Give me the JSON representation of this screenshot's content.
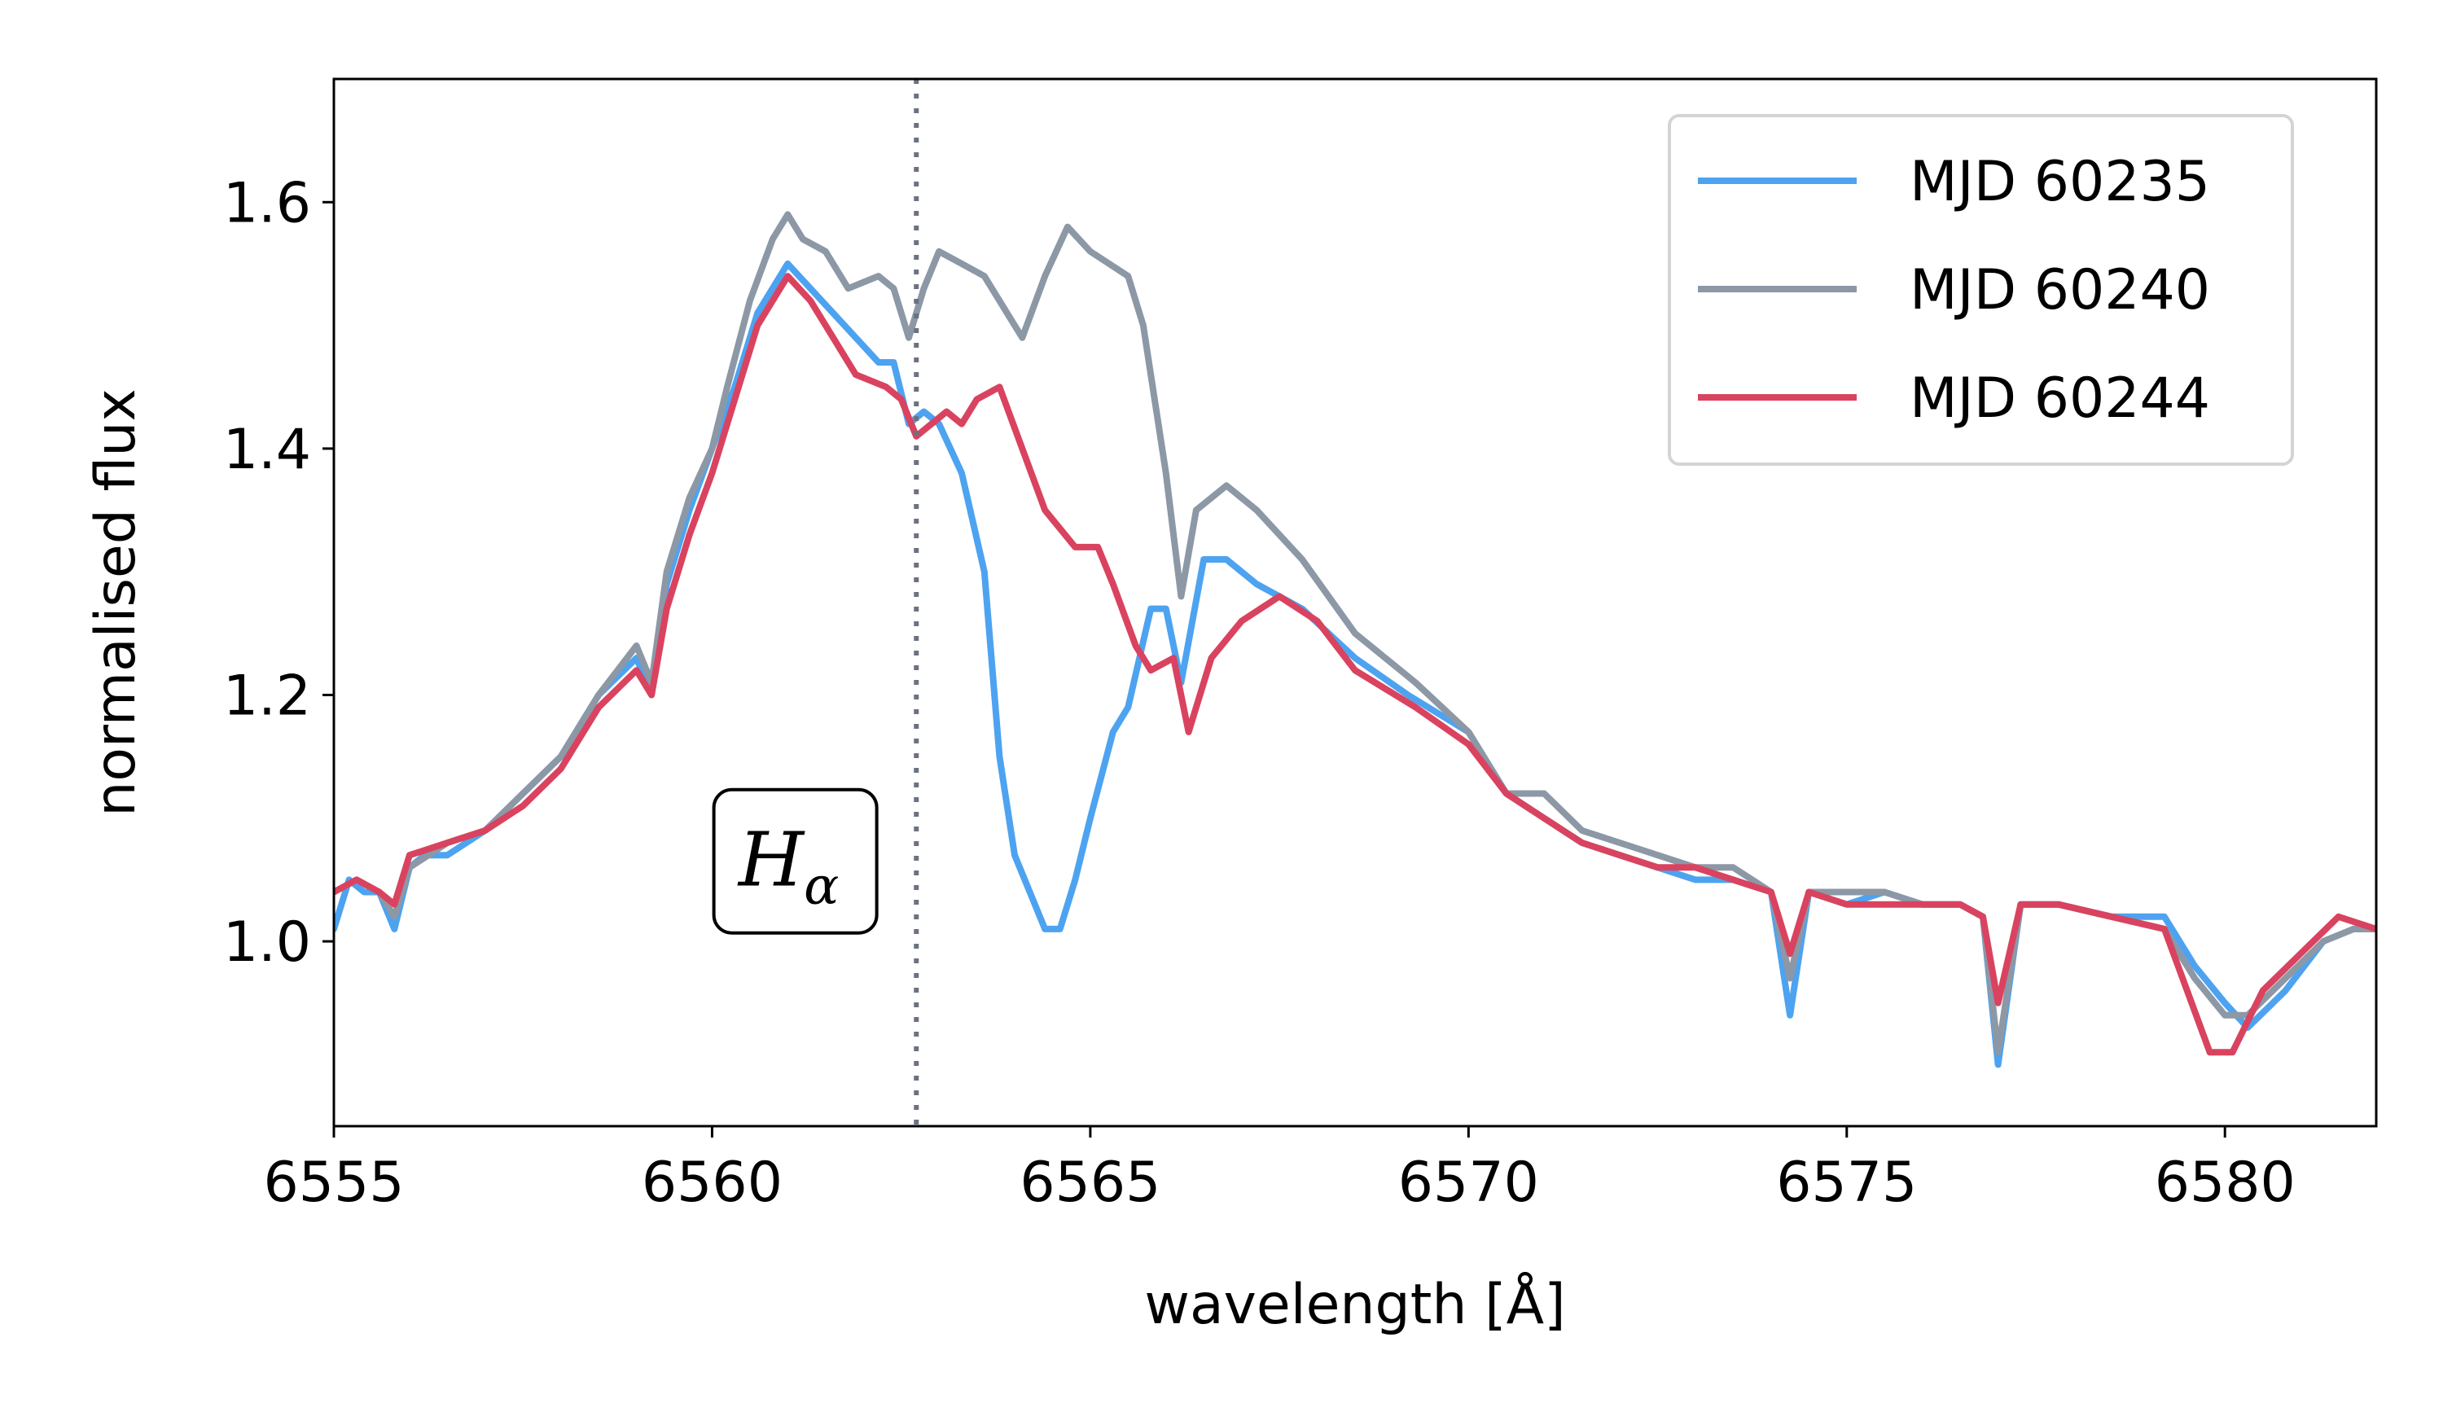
{
  "chart_data": {
    "type": "line",
    "xlabel": "wavelength [Å]",
    "ylabel": "normalised flux",
    "xlim": [
      6555,
      6582
    ],
    "ylim": [
      0.85,
      1.7
    ],
    "xticks": [
      6555,
      6560,
      6565,
      6570,
      6575,
      6580
    ],
    "xtick_labels": [
      "6555",
      "6560",
      "6565",
      "6570",
      "6575",
      "6580"
    ],
    "yticks": [
      1.0,
      1.2,
      1.4,
      1.6
    ],
    "ytick_labels": [
      "1.0",
      "1.2",
      "1.4",
      "1.6"
    ],
    "grid": false,
    "legend_position": "top-right",
    "reference_line": {
      "x": 6562.7,
      "style": "dotted",
      "color": "#6b7380"
    },
    "annotation": {
      "text": "H",
      "subscript": "α",
      "x": 6561.1,
      "y": 1.065
    },
    "series": [
      {
        "name": "MJD 60235",
        "color": "#4da3f0",
        "points": [
          [
            6555.0,
            1.01
          ],
          [
            6555.2,
            1.05
          ],
          [
            6555.4,
            1.04
          ],
          [
            6555.6,
            1.04
          ],
          [
            6555.8,
            1.01
          ],
          [
            6556.0,
            1.06
          ],
          [
            6556.2,
            1.07
          ],
          [
            6556.5,
            1.07
          ],
          [
            6557.0,
            1.09
          ],
          [
            6557.5,
            1.12
          ],
          [
            6558.0,
            1.15
          ],
          [
            6558.5,
            1.2
          ],
          [
            6559.0,
            1.23
          ],
          [
            6559.2,
            1.2
          ],
          [
            6559.4,
            1.29
          ],
          [
            6559.7,
            1.35
          ],
          [
            6560.0,
            1.4
          ],
          [
            6560.3,
            1.45
          ],
          [
            6560.6,
            1.51
          ],
          [
            6561.0,
            1.55
          ],
          [
            6561.3,
            1.53
          ],
          [
            6561.6,
            1.51
          ],
          [
            6561.9,
            1.49
          ],
          [
            6562.2,
            1.47
          ],
          [
            6562.4,
            1.47
          ],
          [
            6562.6,
            1.42
          ],
          [
            6562.8,
            1.43
          ],
          [
            6563.0,
            1.42
          ],
          [
            6563.3,
            1.38
          ],
          [
            6563.6,
            1.3
          ],
          [
            6563.8,
            1.15
          ],
          [
            6564.0,
            1.07
          ],
          [
            6564.2,
            1.04
          ],
          [
            6564.4,
            1.01
          ],
          [
            6564.6,
            1.01
          ],
          [
            6564.8,
            1.05
          ],
          [
            6565.0,
            1.1
          ],
          [
            6565.3,
            1.17
          ],
          [
            6565.5,
            1.19
          ],
          [
            6565.8,
            1.27
          ],
          [
            6566.0,
            1.27
          ],
          [
            6566.2,
            1.21
          ],
          [
            6566.5,
            1.31
          ],
          [
            6566.8,
            1.31
          ],
          [
            6567.2,
            1.29
          ],
          [
            6567.8,
            1.27
          ],
          [
            6568.5,
            1.23
          ],
          [
            6569.2,
            1.2
          ],
          [
            6570.0,
            1.17
          ],
          [
            6570.5,
            1.12
          ],
          [
            6571.0,
            1.1
          ],
          [
            6571.5,
            1.08
          ],
          [
            6572.0,
            1.07
          ],
          [
            6572.5,
            1.06
          ],
          [
            6573.0,
            1.05
          ],
          [
            6573.5,
            1.05
          ],
          [
            6574.0,
            1.04
          ],
          [
            6574.25,
            0.94
          ],
          [
            6574.5,
            1.04
          ],
          [
            6575.0,
            1.03
          ],
          [
            6575.5,
            1.04
          ],
          [
            6576.0,
            1.03
          ],
          [
            6576.5,
            1.03
          ],
          [
            6576.8,
            1.02
          ],
          [
            6577.0,
            0.9
          ],
          [
            6577.3,
            1.03
          ],
          [
            6577.8,
            1.03
          ],
          [
            6578.5,
            1.02
          ],
          [
            6579.2,
            1.02
          ],
          [
            6579.6,
            0.98
          ],
          [
            6580.0,
            0.95
          ],
          [
            6580.3,
            0.93
          ],
          [
            6580.8,
            0.96
          ],
          [
            6581.3,
            1.0
          ],
          [
            6581.7,
            1.01
          ],
          [
            6582.0,
            1.01
          ]
        ]
      },
      {
        "name": "MJD 60240",
        "color": "#8c98a6",
        "points": [
          [
            6555.0,
            1.04
          ],
          [
            6555.3,
            1.05
          ],
          [
            6555.6,
            1.04
          ],
          [
            6555.8,
            1.02
          ],
          [
            6556.0,
            1.06
          ],
          [
            6556.5,
            1.08
          ],
          [
            6557.0,
            1.09
          ],
          [
            6557.5,
            1.12
          ],
          [
            6558.0,
            1.15
          ],
          [
            6558.5,
            1.2
          ],
          [
            6559.0,
            1.24
          ],
          [
            6559.2,
            1.21
          ],
          [
            6559.4,
            1.3
          ],
          [
            6559.7,
            1.36
          ],
          [
            6560.0,
            1.4
          ],
          [
            6560.2,
            1.45
          ],
          [
            6560.5,
            1.52
          ],
          [
            6560.8,
            1.57
          ],
          [
            6561.0,
            1.59
          ],
          [
            6561.2,
            1.57
          ],
          [
            6561.5,
            1.56
          ],
          [
            6561.8,
            1.53
          ],
          [
            6562.2,
            1.54
          ],
          [
            6562.4,
            1.53
          ],
          [
            6562.6,
            1.49
          ],
          [
            6562.8,
            1.53
          ],
          [
            6563.0,
            1.56
          ],
          [
            6563.3,
            1.55
          ],
          [
            6563.6,
            1.54
          ],
          [
            6563.9,
            1.51
          ],
          [
            6564.1,
            1.49
          ],
          [
            6564.4,
            1.54
          ],
          [
            6564.7,
            1.58
          ],
          [
            6565.0,
            1.56
          ],
          [
            6565.5,
            1.54
          ],
          [
            6565.7,
            1.5
          ],
          [
            6566.0,
            1.38
          ],
          [
            6566.2,
            1.28
          ],
          [
            6566.4,
            1.35
          ],
          [
            6566.8,
            1.37
          ],
          [
            6567.2,
            1.35
          ],
          [
            6567.8,
            1.31
          ],
          [
            6568.5,
            1.25
          ],
          [
            6569.3,
            1.21
          ],
          [
            6570.0,
            1.17
          ],
          [
            6570.5,
            1.12
          ],
          [
            6571.0,
            1.12
          ],
          [
            6571.5,
            1.09
          ],
          [
            6572.0,
            1.08
          ],
          [
            6572.5,
            1.07
          ],
          [
            6573.0,
            1.06
          ],
          [
            6573.5,
            1.06
          ],
          [
            6574.0,
            1.04
          ],
          [
            6574.25,
            0.97
          ],
          [
            6574.5,
            1.04
          ],
          [
            6575.0,
            1.04
          ],
          [
            6575.5,
            1.04
          ],
          [
            6576.0,
            1.03
          ],
          [
            6576.5,
            1.03
          ],
          [
            6576.8,
            1.02
          ],
          [
            6577.0,
            0.91
          ],
          [
            6577.3,
            1.03
          ],
          [
            6577.8,
            1.03
          ],
          [
            6578.5,
            1.02
          ],
          [
            6579.2,
            1.01
          ],
          [
            6579.6,
            0.97
          ],
          [
            6580.0,
            0.94
          ],
          [
            6580.3,
            0.94
          ],
          [
            6580.8,
            0.97
          ],
          [
            6581.3,
            1.0
          ],
          [
            6581.7,
            1.01
          ],
          [
            6582.0,
            1.01
          ]
        ]
      },
      {
        "name": "MJD 60244",
        "color": "#d9435f",
        "points": [
          [
            6555.0,
            1.04
          ],
          [
            6555.3,
            1.05
          ],
          [
            6555.6,
            1.04
          ],
          [
            6555.8,
            1.03
          ],
          [
            6556.0,
            1.07
          ],
          [
            6556.5,
            1.08
          ],
          [
            6557.0,
            1.09
          ],
          [
            6557.5,
            1.11
          ],
          [
            6558.0,
            1.14
          ],
          [
            6558.5,
            1.19
          ],
          [
            6559.0,
            1.22
          ],
          [
            6559.2,
            1.2
          ],
          [
            6559.4,
            1.27
          ],
          [
            6559.7,
            1.33
          ],
          [
            6560.0,
            1.38
          ],
          [
            6560.3,
            1.44
          ],
          [
            6560.6,
            1.5
          ],
          [
            6561.0,
            1.54
          ],
          [
            6561.3,
            1.52
          ],
          [
            6561.6,
            1.49
          ],
          [
            6561.9,
            1.46
          ],
          [
            6562.3,
            1.45
          ],
          [
            6562.5,
            1.44
          ],
          [
            6562.7,
            1.41
          ],
          [
            6562.9,
            1.42
          ],
          [
            6563.1,
            1.43
          ],
          [
            6563.3,
            1.42
          ],
          [
            6563.5,
            1.44
          ],
          [
            6563.8,
            1.45
          ],
          [
            6564.1,
            1.4
          ],
          [
            6564.4,
            1.35
          ],
          [
            6564.8,
            1.32
          ],
          [
            6565.1,
            1.32
          ],
          [
            6565.3,
            1.29
          ],
          [
            6565.6,
            1.24
          ],
          [
            6565.8,
            1.22
          ],
          [
            6566.1,
            1.23
          ],
          [
            6566.3,
            1.17
          ],
          [
            6566.6,
            1.23
          ],
          [
            6567.0,
            1.26
          ],
          [
            6567.5,
            1.28
          ],
          [
            6568.0,
            1.26
          ],
          [
            6568.5,
            1.22
          ],
          [
            6569.3,
            1.19
          ],
          [
            6570.0,
            1.16
          ],
          [
            6570.5,
            1.12
          ],
          [
            6571.0,
            1.1
          ],
          [
            6571.5,
            1.08
          ],
          [
            6572.0,
            1.07
          ],
          [
            6572.5,
            1.06
          ],
          [
            6573.0,
            1.06
          ],
          [
            6573.5,
            1.05
          ],
          [
            6574.0,
            1.04
          ],
          [
            6574.25,
            0.99
          ],
          [
            6574.5,
            1.04
          ],
          [
            6575.0,
            1.03
          ],
          [
            6575.5,
            1.03
          ],
          [
            6576.0,
            1.03
          ],
          [
            6576.5,
            1.03
          ],
          [
            6576.8,
            1.02
          ],
          [
            6577.0,
            0.95
          ],
          [
            6577.3,
            1.03
          ],
          [
            6577.8,
            1.03
          ],
          [
            6578.5,
            1.02
          ],
          [
            6579.2,
            1.01
          ],
          [
            6579.5,
            0.96
          ],
          [
            6579.8,
            0.91
          ],
          [
            6580.1,
            0.91
          ],
          [
            6580.5,
            0.96
          ],
          [
            6581.0,
            0.99
          ],
          [
            6581.5,
            1.02
          ],
          [
            6582.0,
            1.01
          ]
        ]
      }
    ]
  }
}
